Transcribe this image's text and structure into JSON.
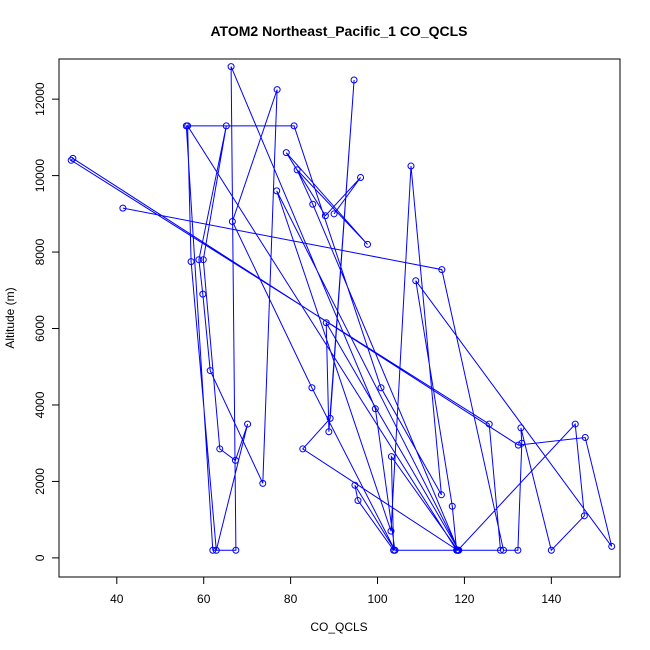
{
  "chart_data": {
    "type": "scatter",
    "title": "ATOM2 Northeast_Pacific_1 CO_QCLS",
    "xlabel": "CO_QCLS",
    "ylabel": "Altitude (m)",
    "xlim": [
      26.7,
      155.8
    ],
    "ylim": [
      -500,
      13050
    ],
    "xticks": [
      40,
      60,
      80,
      100,
      120,
      140
    ],
    "yticks": [
      0,
      2000,
      4000,
      6000,
      8000,
      10000,
      12000
    ],
    "xtick_labels": [
      "40",
      "60",
      "80",
      "100",
      "120",
      "140"
    ],
    "ytick_labels": [
      "0",
      "2000",
      "4000",
      "6000",
      "8000",
      "10000",
      "12000"
    ],
    "line_color": "#0000ff",
    "marker": "open-circle",
    "grid": false,
    "series": [
      {
        "x": [
          41.4,
          114.8,
          129.0,
          132.3,
          133.2,
          133.0,
          140.0,
          147.6,
          145.5,
          118.5,
          103.2,
          103.7,
          95.5,
          94.8,
          104.0,
          118.4,
          82.8,
          89.1,
          94.6,
          88.8,
          88.2,
          118.7,
          76.8,
          103.1,
          107.7,
          114.7,
          100.8,
          80.8,
          56.0,
          62.1,
          67.4,
          66.3,
          99.5,
          104.0,
          84.9,
          66.6,
          76.9,
          73.6,
          61.5,
          59.8,
          58.9,
          65.2,
          59.9,
          63.7,
          67.3,
          70.1,
          62.9,
          57.1,
          56.3,
          118.2,
          117.2,
          108.8,
          153.9,
          147.8,
          132.4,
          29.9,
          29.5,
          125.7,
          128.3,
          118.6,
          85.1,
          81.5,
          97.7,
          79.0,
          88.0,
          96.1,
          90.0
        ],
        "y": [
          9150,
          7540,
          200,
          200,
          3000,
          3400,
          200,
          1100,
          3500,
          200,
          2650,
          200,
          1500,
          1900,
          200,
          200,
          2850,
          3650,
          12500,
          3300,
          6150,
          200,
          9600,
          700,
          10250,
          1650,
          4450,
          11300,
          11300,
          200,
          200,
          12850,
          3900,
          200,
          4450,
          8800,
          12250,
          1950,
          4900,
          6900,
          7800,
          11300,
          7800,
          2850,
          2550,
          3500,
          200,
          7750,
          11300,
          200,
          1350,
          7250,
          300,
          3150,
          2950,
          10450,
          10400,
          3500,
          200,
          200,
          9250,
          10150,
          8200,
          10600,
          8950,
          9950,
          9000
        ]
      }
    ]
  }
}
